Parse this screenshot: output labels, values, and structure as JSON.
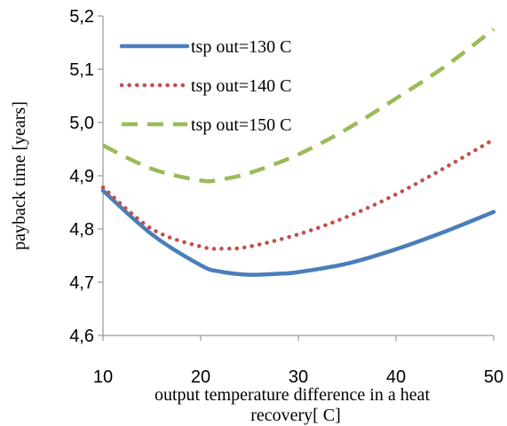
{
  "chart_data": {
    "type": "line",
    "xlabel": [
      "output temperature difference in a heat",
      "recovery[  C]"
    ],
    "ylabel": "payback time [years]",
    "xlim": [
      10,
      50
    ],
    "ylim": [
      4.6,
      5.2
    ],
    "xticks": [
      "10",
      "20",
      "30",
      "40",
      "50"
    ],
    "yticks": [
      "4,6",
      "4,7",
      "4,8",
      "4,9",
      "5,0",
      "5,1",
      "5,2"
    ],
    "grid": false,
    "legend_position": "top-left",
    "series": [
      {
        "name": "tsp out=130  C",
        "color": "#4a7ebb",
        "style": "solid",
        "x": [
          10,
          15,
          20,
          22,
          25,
          28,
          30,
          35,
          40,
          45,
          50
        ],
        "y": [
          4.872,
          4.79,
          4.732,
          4.72,
          4.714,
          4.716,
          4.719,
          4.735,
          4.762,
          4.795,
          4.832
        ]
      },
      {
        "name": "tsp out=140  C",
        "color": "#c0504d",
        "style": "dotted",
        "x": [
          10,
          15,
          20,
          22.5,
          25,
          30,
          35,
          40,
          45,
          50
        ],
        "y": [
          4.878,
          4.8,
          4.767,
          4.763,
          4.767,
          4.79,
          4.823,
          4.865,
          4.915,
          4.968
        ]
      },
      {
        "name": "tsp out=150  C",
        "color": "#9bbb59",
        "style": "dashed",
        "x": [
          10,
          15,
          20,
          22,
          25,
          30,
          35,
          40,
          45,
          50
        ],
        "y": [
          4.957,
          4.913,
          4.891,
          4.893,
          4.905,
          4.94,
          4.988,
          5.045,
          5.105,
          5.175
        ]
      }
    ]
  }
}
